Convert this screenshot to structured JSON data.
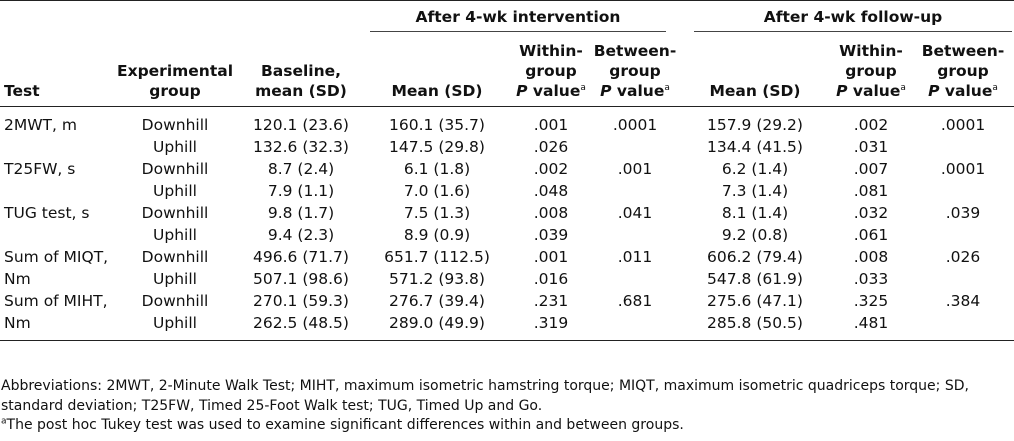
{
  "header": {
    "group1": "After 4-wk intervention",
    "group2": "After 4-wk follow-up",
    "test": "Test",
    "experimental_group_line1": "Experimental",
    "experimental_group_line2": "group",
    "baseline_line1": "Baseline,",
    "baseline_line2": "mean (SD)",
    "mean_sd": "Mean (SD)",
    "within_line1": "Within-",
    "within_line2": "group",
    "between_line1": "Between-",
    "between_line2": "group",
    "p": "P",
    "value": " value",
    "a": "a"
  },
  "rows": [
    {
      "test": "2MWT, m",
      "group": "Downhill",
      "baseline": "120.1 (23.6)",
      "int_mean": "160.1 (35.7)",
      "int_within": ".001",
      "int_between": ".0001",
      "fu_mean": "157.9 (29.2)",
      "fu_within": ".002",
      "fu_between": ".0001"
    },
    {
      "test": "",
      "group": "Uphill",
      "baseline": "132.6 (32.3)",
      "int_mean": "147.5 (29.8)",
      "int_within": ".026",
      "int_between": "",
      "fu_mean": "134.4 (41.5)",
      "fu_within": ".031",
      "fu_between": ""
    },
    {
      "test": "T25FW, s",
      "group": "Downhill",
      "baseline": "8.7 (2.4)",
      "int_mean": "6.1 (1.8)",
      "int_within": ".002",
      "int_between": ".001",
      "fu_mean": "6.2 (1.4)",
      "fu_within": ".007",
      "fu_between": ".0001"
    },
    {
      "test": "",
      "group": "Uphill",
      "baseline": "7.9 (1.1)",
      "int_mean": "7.0 (1.6)",
      "int_within": ".048",
      "int_between": "",
      "fu_mean": "7.3 (1.4)",
      "fu_within": ".081",
      "fu_between": ""
    },
    {
      "test": "TUG test, s",
      "group": "Downhill",
      "baseline": "9.8 (1.7)",
      "int_mean": "7.5 (1.3)",
      "int_within": ".008",
      "int_between": ".041",
      "fu_mean": "8.1 (1.4)",
      "fu_within": ".032",
      "fu_between": ".039"
    },
    {
      "test": "",
      "group": "Uphill",
      "baseline": "9.4 (2.3)",
      "int_mean": "8.9 (0.9)",
      "int_within": ".039",
      "int_between": "",
      "fu_mean": "9.2 (0.8)",
      "fu_within": ".061",
      "fu_between": ""
    },
    {
      "test": "Sum of MIQT,",
      "group": "Downhill",
      "baseline": "496.6 (71.7)",
      "int_mean": "651.7 (112.5)",
      "int_within": ".001",
      "int_between": ".011",
      "fu_mean": "606.2 (79.4)",
      "fu_within": ".008",
      "fu_between": ".026"
    },
    {
      "test": "Nm",
      "group": "Uphill",
      "baseline": "507.1 (98.6)",
      "int_mean": "571.2 (93.8)",
      "int_within": ".016",
      "int_between": "",
      "fu_mean": "547.8 (61.9)",
      "fu_within": ".033",
      "fu_between": ""
    },
    {
      "test": "Sum of MIHT,",
      "group": "Downhill",
      "baseline": "270.1 (59.3)",
      "int_mean": "276.7 (39.4)",
      "int_within": ".231",
      "int_between": ".681",
      "fu_mean": "275.6 (47.1)",
      "fu_within": ".325",
      "fu_between": ".384"
    },
    {
      "test": "Nm",
      "group": "Uphill",
      "baseline": "262.5 (48.5)",
      "int_mean": "289.0 (49.9)",
      "int_within": ".319",
      "int_between": "",
      "fu_mean": "285.8 (50.5)",
      "fu_within": ".481",
      "fu_between": ""
    }
  ],
  "notes": {
    "abbreviations": "Abbreviations: 2MWT, 2-Minute Walk Test; MIHT, maximum isometric hamstring torque; MIQT, maximum isometric quadriceps torque; SD, standard deviation; T25FW, Timed 25-Foot Walk test; TUG, Timed Up and Go.",
    "footnote_mark": "a",
    "footnote": "The post hoc Tukey test was used to examine significant differences within and between groups."
  }
}
